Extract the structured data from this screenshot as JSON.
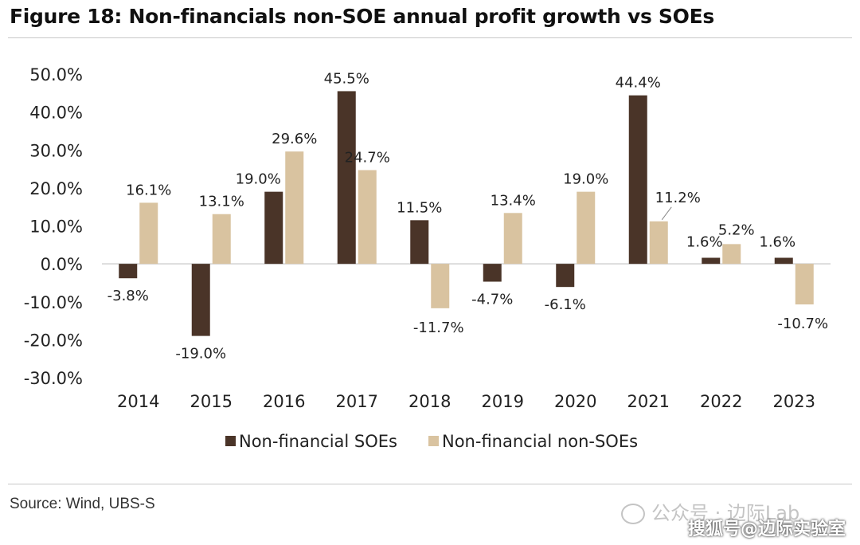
{
  "title": "Figure 18: Non-financials non-SOE annual profit growth vs SOEs",
  "source": "Source: Wind, UBS-S",
  "watermark": {
    "line1": "公众号 · 边际Lab",
    "line2": "搜狐号@边际实验室"
  },
  "chart_data": {
    "type": "bar",
    "categories": [
      "2014",
      "2015",
      "2016",
      "2017",
      "2018",
      "2019",
      "2020",
      "2021",
      "2022",
      "2023"
    ],
    "series": [
      {
        "name": "Non-financial SOEs",
        "color": "#4a3428",
        "values": [
          -3.8,
          -19.0,
          19.0,
          45.5,
          11.5,
          -4.7,
          -6.1,
          44.4,
          1.6,
          1.6
        ],
        "labels": [
          "-3.8%",
          "-19.0%",
          "19.0%",
          "45.5%",
          "11.5%",
          "-4.7%",
          "-6.1%",
          "44.4%",
          "1.6%",
          "1.6%"
        ]
      },
      {
        "name": "Non-financial non-SOEs",
        "color": "#d9c3a0",
        "values": [
          16.1,
          13.1,
          29.6,
          24.7,
          -11.7,
          13.4,
          19.0,
          11.2,
          5.2,
          -10.7
        ],
        "labels": [
          "16.1%",
          "13.1%",
          "29.6%",
          "24.7%",
          "-11.7%",
          "13.4%",
          "19.0%",
          "11.2%",
          "5.2%",
          "-10.7%"
        ]
      }
    ],
    "ylim": [
      -30,
      50
    ],
    "yticks": [
      50,
      40,
      30,
      20,
      10,
      0,
      -10,
      -20,
      -30
    ],
    "ytick_labels": [
      "50.0%",
      "40.0%",
      "30.0%",
      "20.0%",
      "10.0%",
      "0.0%",
      "-10.0%",
      "-20.0%",
      "-30.0%"
    ],
    "xlabel": "",
    "ylabel": "",
    "legend": "bottom-center",
    "grid": false
  }
}
